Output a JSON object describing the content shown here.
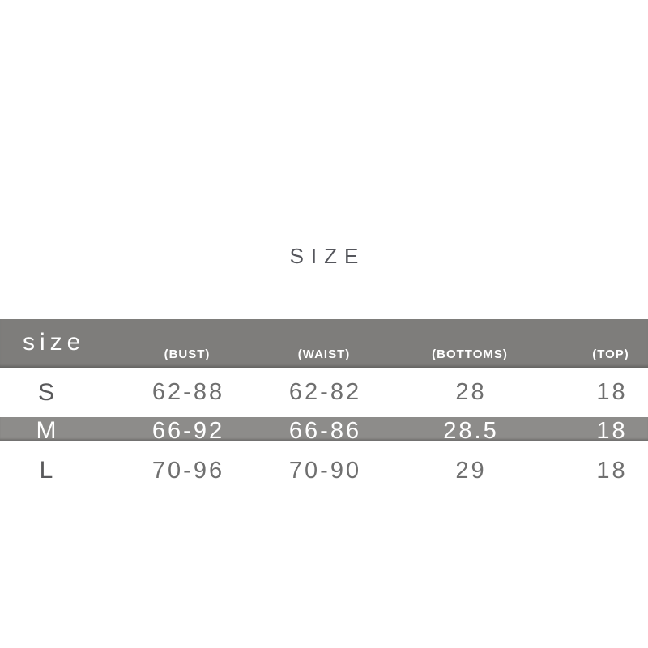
{
  "title": "SIZE",
  "chart_data": {
    "type": "table",
    "title": "SIZE",
    "header": {
      "size_label": "size",
      "measure_columns": [
        "(BUST)",
        "(WAIST)",
        "(BOTTOMS)",
        "(TOP)"
      ]
    },
    "rows": [
      [
        "S",
        "62-88",
        "62-82",
        "28",
        "18"
      ],
      [
        "M",
        "66-92",
        "66-86",
        "28.5",
        "18"
      ],
      [
        "L",
        "70-96",
        "70-90",
        "29",
        "18"
      ]
    ],
    "highlighted_row_index": 1,
    "layout": {
      "grid": false,
      "highlighted_row_style": "gray band with white text"
    }
  },
  "colors": {
    "header_bg": "#7e7d7b",
    "highlight_bg": "#8d8c8a",
    "header_text": "#ffffff",
    "title_text": "#55565c",
    "size_letter_text": "#59595b",
    "value_text": "#6f6f6f",
    "page_bg": "#ffffff"
  }
}
